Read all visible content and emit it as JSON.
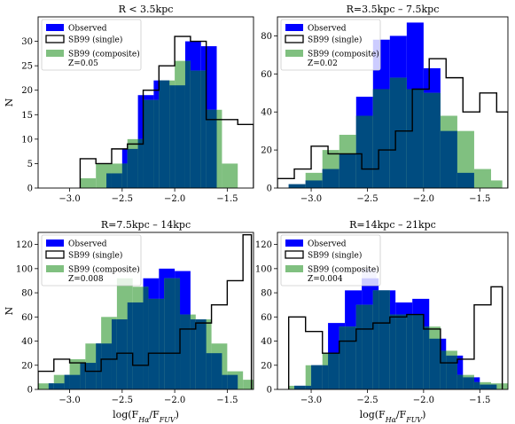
{
  "chart_data": [
    {
      "type": "bar",
      "title": "R < 3.5kpc",
      "xlabel": "",
      "ylabel": "N",
      "xlim": [
        -3.3,
        -1.25
      ],
      "ylim": [
        0,
        35
      ],
      "xticks": [
        -3.0,
        -2.5,
        -2.0,
        -1.5
      ],
      "xtick_labels": [
        "−3.0",
        "−2.5",
        "−2.0",
        "−1.5"
      ],
      "yticks": [
        0,
        5,
        10,
        15,
        20,
        25,
        30
      ],
      "ytick_labels": [
        "0",
        "5",
        "10",
        "15",
        "20",
        "25",
        "30"
      ],
      "legend": {
        "position": "top-left",
        "entries": [
          {
            "label": "Observed",
            "swatch": "observed"
          },
          {
            "label": "SB99 (single)",
            "swatch": "single"
          },
          {
            "label": "SB99 (composite)",
            "label2": "Z=0.05",
            "swatch": "composite"
          }
        ]
      },
      "series": [
        {
          "name": "Observed",
          "kind": "fill",
          "edges": [
            -2.65,
            -2.5,
            -2.35,
            -2.2,
            -2.05,
            -1.9,
            -1.75,
            -1.6
          ],
          "counts": [
            3,
            8,
            19,
            22,
            21,
            30,
            29
          ]
        },
        {
          "name": "SB99 (single)",
          "kind": "step",
          "edges": [
            -2.9,
            -2.75,
            -2.6,
            -2.45,
            -2.3,
            -2.15,
            -2.0,
            -1.85,
            -1.7,
            -1.55,
            -1.4,
            -1.25
          ],
          "counts": [
            6,
            5,
            8,
            9,
            20,
            25,
            31,
            30,
            14,
            14,
            13
          ]
        },
        {
          "name": "SB99 (composite)",
          "kind": "fill",
          "edges": [
            -2.9,
            -2.75,
            -2.6,
            -2.45,
            -2.3,
            -2.15,
            -2.0,
            -1.85,
            -1.7,
            -1.55,
            -1.4
          ],
          "counts": [
            2,
            5,
            5,
            10,
            18,
            22,
            26,
            24,
            16,
            5
          ]
        }
      ]
    },
    {
      "type": "bar",
      "title": "R=3.5kpc – 7.5kpc",
      "xlabel": "",
      "ylabel": "",
      "xlim": [
        -3.3,
        -1.25
      ],
      "ylim": [
        0,
        90
      ],
      "xticks": [
        -3.0,
        -2.5,
        -2.0,
        -1.5
      ],
      "xtick_labels": [
        "−3.0",
        "−2.5",
        "−2.0",
        "−1.5"
      ],
      "yticks": [
        0,
        20,
        40,
        60,
        80
      ],
      "ytick_labels": [
        "0",
        "20",
        "40",
        "60",
        "80"
      ],
      "legend": {
        "position": "top-left",
        "entries": [
          {
            "label": "Observed",
            "swatch": "observed"
          },
          {
            "label": "SB99 (single)",
            "swatch": "single"
          },
          {
            "label": "SB99 (composite)",
            "label2": "Z=0.02",
            "swatch": "composite"
          }
        ]
      },
      "series": [
        {
          "name": "Observed",
          "kind": "fill",
          "edges": [
            -3.2,
            -3.05,
            -2.9,
            -2.75,
            -2.6,
            -2.45,
            -2.3,
            -2.15,
            -2.0,
            -1.85,
            -1.7,
            -1.55
          ],
          "counts": [
            2,
            4,
            10,
            18,
            48,
            78,
            80,
            87,
            63,
            30,
            8
          ]
        },
        {
          "name": "SB99 (single)",
          "kind": "step",
          "edges": [
            -3.3,
            -3.15,
            -3.0,
            -2.85,
            -2.7,
            -2.55,
            -2.4,
            -2.25,
            -2.1,
            -1.95,
            -1.8,
            -1.65,
            -1.5,
            -1.35,
            -1.25
          ],
          "counts": [
            5,
            10,
            22,
            18,
            18,
            10,
            20,
            30,
            52,
            68,
            58,
            40,
            50,
            40
          ]
        },
        {
          "name": "SB99 (composite)",
          "kind": "fill",
          "edges": [
            -3.2,
            -3.05,
            -2.9,
            -2.75,
            -2.6,
            -2.45,
            -2.3,
            -2.15,
            -2.0,
            -1.85,
            -1.7,
            -1.55,
            -1.4,
            -1.3
          ],
          "counts": [
            2,
            8,
            20,
            28,
            38,
            52,
            58,
            52,
            50,
            38,
            30,
            10,
            4
          ]
        }
      ]
    },
    {
      "type": "bar",
      "title": "R=7.5kpc – 14kpc",
      "xlabel": "log(F_Hα/F_FUV)",
      "ylabel": "N",
      "xlim": [
        -3.3,
        -1.25
      ],
      "ylim": [
        0,
        130
      ],
      "xticks": [
        -3.0,
        -2.5,
        -2.0,
        -1.5
      ],
      "xtick_labels": [
        "−3.0",
        "−2.5",
        "−2.0",
        "−1.5"
      ],
      "yticks": [
        0,
        20,
        40,
        60,
        80,
        100,
        120
      ],
      "ytick_labels": [
        "0",
        "20",
        "40",
        "60",
        "80",
        "100",
        "120"
      ],
      "legend": {
        "position": "top-left",
        "entries": [
          {
            "label": "Observed",
            "swatch": "observed"
          },
          {
            "label": "SB99 (single)",
            "swatch": "single"
          },
          {
            "label": "SB99 (composite)",
            "label2": "Z=0.008",
            "swatch": "composite"
          }
        ]
      },
      "series": [
        {
          "name": "Observed",
          "kind": "fill",
          "edges": [
            -3.2,
            -3.05,
            -2.9,
            -2.75,
            -2.6,
            -2.45,
            -2.3,
            -2.15,
            -2.0,
            -1.85,
            -1.7,
            -1.55,
            -1.4
          ],
          "counts": [
            5,
            12,
            22,
            38,
            58,
            72,
            92,
            100,
            98,
            58,
            30,
            12
          ]
        },
        {
          "name": "SB99 (single)",
          "kind": "step",
          "edges": [
            -3.3,
            -3.15,
            -3.0,
            -2.85,
            -2.7,
            -2.55,
            -2.4,
            -2.25,
            -2.1,
            -1.95,
            -1.8,
            -1.65,
            -1.5,
            -1.35,
            -1.27
          ],
          "counts": [
            15,
            25,
            22,
            15,
            25,
            30,
            20,
            30,
            30,
            50,
            55,
            70,
            90,
            128
          ]
        },
        {
          "name": "SB99 (composite)",
          "kind": "fill",
          "edges": [
            -3.3,
            -3.15,
            -3.0,
            -2.85,
            -2.7,
            -2.55,
            -2.4,
            -2.25,
            -2.1,
            -1.95,
            -1.8,
            -1.65,
            -1.5,
            -1.35,
            -1.25
          ],
          "counts": [
            5,
            12,
            25,
            38,
            60,
            92,
            85,
            75,
            92,
            62,
            58,
            38,
            15,
            8
          ]
        }
      ]
    },
    {
      "type": "bar",
      "title": "R=14kpc – 21kpc",
      "xlabel": "log(F_Hα/F_FUV)",
      "ylabel": "",
      "xlim": [
        -3.3,
        -1.25
      ],
      "ylim": [
        0,
        130
      ],
      "xticks": [
        -3.0,
        -2.5,
        -2.0,
        -1.5
      ],
      "xtick_labels": [
        "−3.0",
        "−2.5",
        "−2.0",
        "−1.5"
      ],
      "yticks": [
        0,
        20,
        40,
        60,
        80,
        100,
        120
      ],
      "ytick_labels": [
        "0",
        "20",
        "40",
        "60",
        "80",
        "100",
        "120"
      ],
      "legend": {
        "position": "top-left",
        "entries": [
          {
            "label": "Observed",
            "swatch": "observed"
          },
          {
            "label": "SB99 (single)",
            "swatch": "single"
          },
          {
            "label": "SB99 (composite)",
            "label2": "Z=0.004",
            "swatch": "composite"
          }
        ]
      },
      "series": [
        {
          "name": "Observed",
          "kind": "fill",
          "edges": [
            -3.15,
            -3.0,
            -2.85,
            -2.7,
            -2.55,
            -2.4,
            -2.25,
            -2.1,
            -1.95,
            -1.8,
            -1.65,
            -1.5,
            -1.35
          ],
          "counts": [
            3,
            20,
            55,
            82,
            92,
            82,
            72,
            75,
            42,
            28,
            10,
            4
          ]
        },
        {
          "name": "SB99 (single)",
          "kind": "step",
          "edges": [
            -3.2,
            -3.05,
            -2.9,
            -2.75,
            -2.6,
            -2.45,
            -2.3,
            -2.15,
            -2.0,
            -1.85,
            -1.7,
            -1.55,
            -1.4,
            -1.3
          ],
          "counts": [
            60,
            48,
            30,
            40,
            50,
            55,
            60,
            62,
            50,
            22,
            25,
            70,
            85
          ]
        },
        {
          "name": "SB99 (composite)",
          "kind": "fill",
          "edges": [
            -3.2,
            -3.05,
            -2.9,
            -2.75,
            -2.6,
            -2.45,
            -2.3,
            -2.15,
            -2.0,
            -1.85,
            -1.7,
            -1.55,
            -1.4,
            -1.25
          ],
          "counts": [
            3,
            20,
            30,
            52,
            70,
            82,
            62,
            62,
            52,
            32,
            12,
            6,
            5
          ]
        }
      ],
      "highlight": {
        "x": [
          -2.55,
          -2.42
        ],
        "y": [
          0,
          100
        ],
        "color": "#c8c8ff"
      }
    }
  ],
  "colors": {
    "observed": "#0000ff",
    "overlap": "#004c80",
    "composite": "#80c080",
    "single": "#000000"
  }
}
